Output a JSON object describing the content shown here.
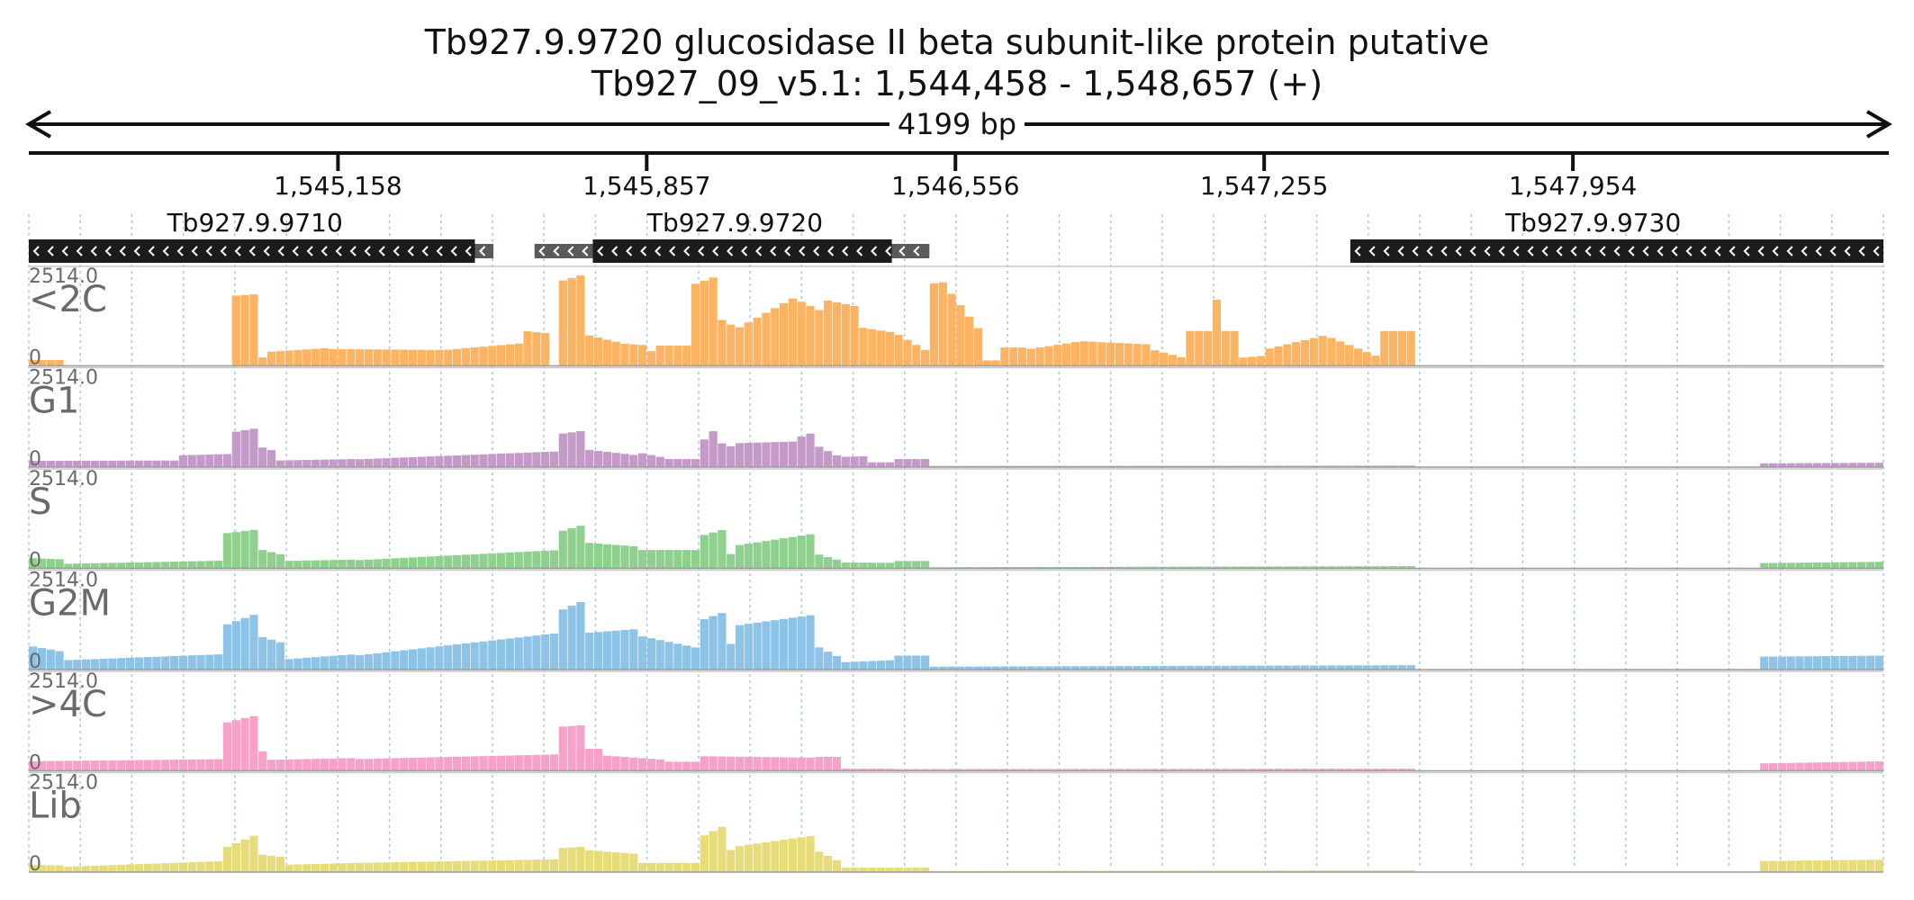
{
  "title_line1": "Tb927.9.9720  glucosidase II beta subunit-like protein  putative",
  "title_line2": "Tb927_09_v5.1: 1,544,458 - 1,548,657 (+)",
  "span_label": "4199 bp",
  "chart_data": {
    "type": "bar",
    "x_range": [
      1544458,
      1548657
    ],
    "ticks": [
      {
        "pos": 1545158,
        "label": "1,545,158"
      },
      {
        "pos": 1545857,
        "label": "1,545,857"
      },
      {
        "pos": 1546556,
        "label": "1,546,556"
      },
      {
        "pos": 1547255,
        "label": "1,547,255"
      },
      {
        "pos": 1547954,
        "label": "1,547,954"
      }
    ],
    "genes": [
      {
        "name": "Tb927.9.9710",
        "start": 1544458,
        "end": 1545468,
        "utr_start": 1545468,
        "utr_end": 1545510,
        "strand": "-",
        "label_pos": 1544970
      },
      {
        "name": "Tb927.9.9720",
        "start": 1545735,
        "end": 1546412,
        "utr_start": 1545603,
        "utr_end": 1546497,
        "strand": "-",
        "label_pos": 1546057
      },
      {
        "name": "Tb927.9.9730",
        "start": 1547450,
        "end": 1548657,
        "strand": "-",
        "label_pos": 1548000
      }
    ],
    "y_max": 2514.0,
    "y_max_label": "2514.0",
    "y_min_label": "0",
    "bin_size": 20,
    "tracks": [
      {
        "name": "<2C",
        "color": "#fdb462",
        "profile": [
          [
            1544458,
            1544530,
            160,
            160
          ],
          [
            1544910,
            1544970,
            1900,
            1950
          ],
          [
            1544970,
            1545000,
            200,
            250
          ],
          [
            1545000,
            1545130,
            380,
            480
          ],
          [
            1545130,
            1545400,
            460,
            430
          ],
          [
            1545400,
            1545580,
            430,
            620
          ],
          [
            1545580,
            1545640,
            950,
            880
          ],
          [
            1545660,
            1545720,
            2300,
            2500
          ],
          [
            1545720,
            1545790,
            850,
            650
          ],
          [
            1545790,
            1545860,
            620,
            560
          ],
          [
            1545860,
            1545870,
            400,
            400
          ],
          [
            1545870,
            1545960,
            550,
            550
          ],
          [
            1545960,
            1546020,
            2200,
            2460
          ],
          [
            1546020,
            1546060,
            1300,
            1050
          ],
          [
            1546060,
            1546190,
            1000,
            1850
          ],
          [
            1546190,
            1546260,
            1850,
            1450
          ],
          [
            1546260,
            1546340,
            1800,
            1600
          ],
          [
            1546340,
            1546420,
            1050,
            900
          ],
          [
            1546420,
            1546500,
            900,
            350
          ],
          [
            1546500,
            1546520,
            2250,
            2250
          ],
          [
            1546520,
            1546610,
            2400,
            1000
          ],
          [
            1546610,
            1546660,
            150,
            150
          ],
          [
            1546660,
            1546720,
            500,
            500
          ],
          [
            1546720,
            1546830,
            450,
            650
          ],
          [
            1546830,
            1547000,
            680,
            580
          ],
          [
            1547000,
            1547080,
            450,
            200
          ],
          [
            1547080,
            1547140,
            950,
            950
          ],
          [
            1547140,
            1547155,
            1800,
            1800
          ],
          [
            1547155,
            1547200,
            950,
            950
          ],
          [
            1547200,
            1547260,
            220,
            280
          ],
          [
            1547260,
            1547400,
            450,
            850
          ],
          [
            1547400,
            1547520,
            800,
            220
          ],
          [
            1547520,
            1547590,
            950,
            950
          ]
        ]
      },
      {
        "name": "G1",
        "color": "#c49ac8",
        "profile": [
          [
            1544458,
            1544800,
            170,
            180
          ],
          [
            1544800,
            1544920,
            320,
            360
          ],
          [
            1544920,
            1544970,
            950,
            1050
          ],
          [
            1544970,
            1545020,
            600,
            420
          ],
          [
            1545020,
            1545200,
            180,
            220
          ],
          [
            1545200,
            1545660,
            210,
            430
          ],
          [
            1545660,
            1545720,
            900,
            1000
          ],
          [
            1545720,
            1545830,
            480,
            330
          ],
          [
            1545830,
            1545900,
            420,
            250
          ],
          [
            1545900,
            1545970,
            220,
            220
          ],
          [
            1545970,
            1546010,
            550,
            1000
          ],
          [
            1546010,
            1546060,
            720,
            520
          ],
          [
            1546060,
            1546200,
            650,
            700
          ],
          [
            1546200,
            1546240,
            800,
            960
          ],
          [
            1546240,
            1546300,
            600,
            250
          ],
          [
            1546300,
            1546360,
            280,
            300
          ],
          [
            1546360,
            1546410,
            130,
            130
          ],
          [
            1546420,
            1546490,
            220,
            220
          ],
          [
            1546490,
            1547590,
            30,
            40
          ],
          [
            1547350,
            1547500,
            80,
            140
          ],
          [
            1548370,
            1548657,
            100,
            120
          ]
        ]
      },
      {
        "name": "S",
        "color": "#8fd08f",
        "profile": [
          [
            1544458,
            1544530,
            280,
            250
          ],
          [
            1544530,
            1544900,
            120,
            210
          ],
          [
            1544900,
            1544970,
            950,
            1050
          ],
          [
            1544970,
            1545030,
            550,
            380
          ],
          [
            1545030,
            1545200,
            200,
            240
          ],
          [
            1545200,
            1545660,
            220,
            500
          ],
          [
            1545660,
            1545720,
            1000,
            1200
          ],
          [
            1545720,
            1545830,
            700,
            600
          ],
          [
            1545830,
            1545970,
            500,
            500
          ],
          [
            1545970,
            1546030,
            850,
            1050
          ],
          [
            1546030,
            1546060,
            400,
            380
          ],
          [
            1546060,
            1546240,
            620,
            950
          ],
          [
            1546240,
            1546300,
            400,
            200
          ],
          [
            1546300,
            1546420,
            160,
            150
          ],
          [
            1546420,
            1546490,
            200,
            200
          ],
          [
            1546490,
            1547590,
            30,
            60
          ],
          [
            1547300,
            1547500,
            100,
            120
          ],
          [
            1548370,
            1548657,
            140,
            180
          ]
        ]
      },
      {
        "name": "G2M",
        "color": "#8ec3e8",
        "profile": [
          [
            1544458,
            1544530,
            650,
            500
          ],
          [
            1544530,
            1544900,
            250,
            420
          ],
          [
            1544900,
            1544970,
            1200,
            1500
          ],
          [
            1544970,
            1545040,
            950,
            700
          ],
          [
            1545040,
            1545200,
            280,
            420
          ],
          [
            1545200,
            1545660,
            380,
            1000
          ],
          [
            1545660,
            1545720,
            1600,
            1900
          ],
          [
            1545720,
            1545830,
            1000,
            1100
          ],
          [
            1545830,
            1545970,
            950,
            600
          ],
          [
            1545970,
            1546030,
            1300,
            1550
          ],
          [
            1546030,
            1546060,
            700,
            700
          ],
          [
            1546060,
            1546240,
            1200,
            1500
          ],
          [
            1546240,
            1546300,
            650,
            300
          ],
          [
            1546300,
            1546420,
            200,
            260
          ],
          [
            1546420,
            1546490,
            380,
            380
          ],
          [
            1546490,
            1547590,
            80,
            120
          ],
          [
            1547300,
            1547500,
            250,
            300
          ],
          [
            1548370,
            1548657,
            350,
            380
          ]
        ]
      },
      {
        "name": ">4C",
        "color": "#f7a1c8",
        "profile": [
          [
            1544458,
            1544900,
            260,
            320
          ],
          [
            1544900,
            1544970,
            1300,
            1500
          ],
          [
            1544970,
            1545000,
            650,
            450
          ],
          [
            1545000,
            1545200,
            300,
            350
          ],
          [
            1545200,
            1545660,
            320,
            450
          ],
          [
            1545660,
            1545720,
            1200,
            1250
          ],
          [
            1545720,
            1545760,
            600,
            600
          ],
          [
            1545760,
            1545900,
            420,
            300
          ],
          [
            1545900,
            1545970,
            250,
            250
          ],
          [
            1545970,
            1546230,
            400,
            360
          ],
          [
            1546230,
            1546300,
            380,
            380
          ],
          [
            1546300,
            1546420,
            60,
            60
          ],
          [
            1546420,
            1547590,
            50,
            60
          ],
          [
            1547300,
            1547400,
            240,
            300
          ],
          [
            1548370,
            1548657,
            200,
            260
          ]
        ]
      },
      {
        "name": "Lib",
        "color": "#e6dc7a",
        "profile": [
          [
            1544458,
            1544530,
            200,
            180
          ],
          [
            1544530,
            1544900,
            140,
            300
          ],
          [
            1544900,
            1544970,
            650,
            1000
          ],
          [
            1544970,
            1545040,
            500,
            400
          ],
          [
            1545040,
            1545200,
            200,
            250
          ],
          [
            1545200,
            1545660,
            250,
            350
          ],
          [
            1545660,
            1545720,
            650,
            700
          ],
          [
            1545720,
            1545830,
            600,
            500
          ],
          [
            1545830,
            1545970,
            250,
            250
          ],
          [
            1545970,
            1546040,
            900,
            1300
          ],
          [
            1546040,
            1546060,
            600,
            600
          ],
          [
            1546060,
            1546240,
            700,
            1000
          ],
          [
            1546240,
            1546300,
            600,
            260
          ],
          [
            1546300,
            1546420,
            120,
            120
          ],
          [
            1546420,
            1546490,
            120,
            120
          ],
          [
            1546490,
            1547590,
            30,
            50
          ],
          [
            1547300,
            1547400,
            160,
            200
          ],
          [
            1548370,
            1548657,
            300,
            340
          ]
        ]
      }
    ]
  }
}
